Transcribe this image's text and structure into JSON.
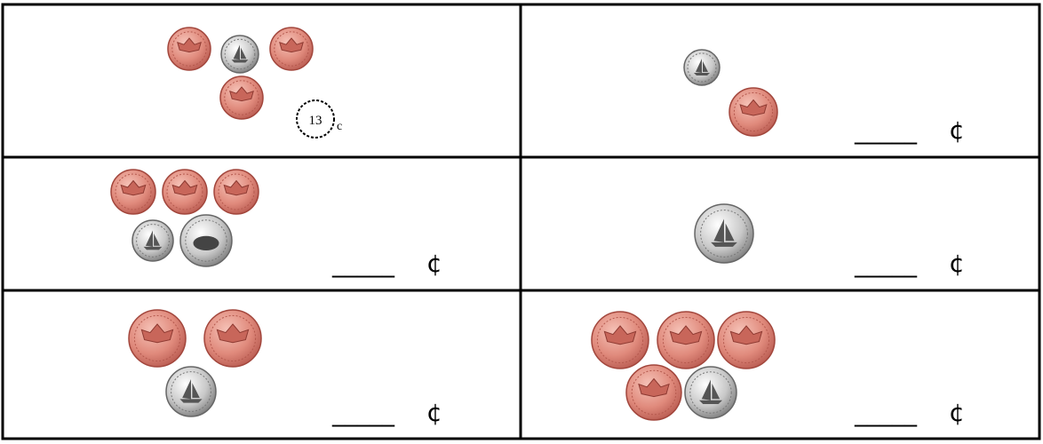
{
  "cells": [
    {
      "answer": "13",
      "unit": "c"
    },
    {
      "blank": "_____",
      "unit": "¢"
    },
    {
      "blank": "_____",
      "unit": "¢"
    },
    {
      "blank": "_____",
      "unit": "¢"
    },
    {
      "blank": "_____",
      "unit": "¢"
    },
    {
      "blank": "_____",
      "unit": "¢"
    }
  ]
}
